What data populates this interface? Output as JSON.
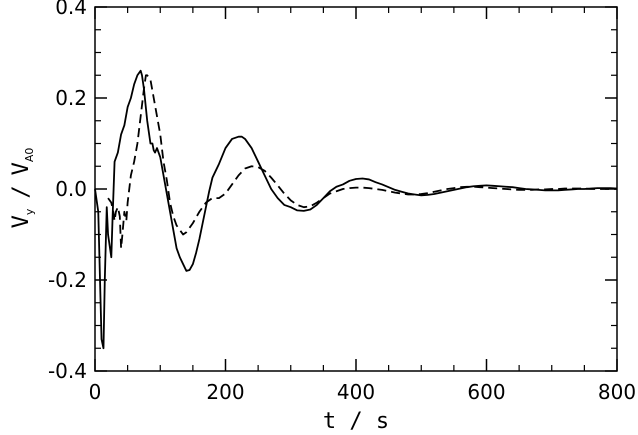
{
  "chart_data": {
    "type": "line",
    "title": "",
    "xlabel": "t / s",
    "ylabel_main": "V",
    "ylabel_sub": "y",
    "ylabel_sep": "/",
    "ylabel_main2": "V",
    "ylabel_sub2": "A0",
    "xlim": [
      0,
      800
    ],
    "ylim": [
      -0.4,
      0.4
    ],
    "x_ticks": [
      0,
      200,
      400,
      600,
      800
    ],
    "x_tick_labels": [
      "0",
      "200",
      "400",
      "600",
      "800"
    ],
    "y_ticks": [
      -0.4,
      -0.2,
      0.0,
      0.2,
      0.4
    ],
    "y_tick_labels": [
      "-0.4",
      "-0.2",
      "0.0",
      "0.2",
      "0.4"
    ],
    "grid": false,
    "series": [
      {
        "style": "solid",
        "x": [
          0,
          5,
          10,
          13,
          15,
          18,
          20,
          25,
          27,
          30,
          35,
          40,
          45,
          50,
          55,
          60,
          65,
          70,
          72,
          75,
          80,
          85,
          88,
          90,
          92,
          95,
          100,
          105,
          110,
          115,
          120,
          125,
          130,
          135,
          140,
          145,
          150,
          155,
          160,
          165,
          170,
          175,
          180,
          185,
          190,
          200,
          210,
          220,
          225,
          230,
          240,
          250,
          260,
          270,
          280,
          290,
          300,
          310,
          320,
          330,
          340,
          350,
          360,
          370,
          380,
          390,
          400,
          410,
          420,
          430,
          440,
          450,
          460,
          470,
          480,
          490,
          500,
          510,
          520,
          530,
          540,
          550,
          560,
          570,
          580,
          590,
          600,
          610,
          620,
          630,
          640,
          650,
          660,
          670,
          680,
          690,
          700,
          710,
          720,
          730,
          740,
          750,
          760,
          770,
          780,
          790,
          800
        ],
        "y": [
          0.0,
          -0.05,
          -0.33,
          -0.35,
          -0.2,
          -0.04,
          -0.1,
          -0.15,
          -0.06,
          0.06,
          0.08,
          0.12,
          0.14,
          0.18,
          0.2,
          0.23,
          0.25,
          0.26,
          0.25,
          0.22,
          0.15,
          0.1,
          0.1,
          0.085,
          0.08,
          0.09,
          0.07,
          0.03,
          -0.01,
          -0.05,
          -0.09,
          -0.13,
          -0.15,
          -0.165,
          -0.18,
          -0.178,
          -0.165,
          -0.14,
          -0.11,
          -0.075,
          -0.04,
          -0.005,
          0.025,
          0.04,
          0.055,
          0.09,
          0.11,
          0.115,
          0.115,
          0.11,
          0.09,
          0.06,
          0.03,
          0.0,
          -0.02,
          -0.035,
          -0.04,
          -0.047,
          -0.048,
          -0.045,
          -0.035,
          -0.02,
          -0.005,
          0.005,
          0.01,
          0.018,
          0.022,
          0.023,
          0.021,
          0.015,
          0.01,
          0.004,
          -0.002,
          -0.006,
          -0.01,
          -0.012,
          -0.014,
          -0.013,
          -0.011,
          -0.008,
          -0.005,
          -0.002,
          0.001,
          0.004,
          0.006,
          0.007,
          0.008,
          0.007,
          0.006,
          0.005,
          0.004,
          0.002,
          0.0,
          -0.001,
          -0.002,
          -0.003,
          -0.003,
          -0.003,
          -0.002,
          -0.001,
          0.0,
          0.0,
          0.001,
          0.002,
          0.002,
          0.002,
          0.001
        ]
      },
      {
        "style": "dashed",
        "x": [
          20,
          25,
          28,
          30,
          32,
          35,
          38,
          40,
          42,
          45,
          48,
          50,
          55,
          60,
          65,
          70,
          75,
          78,
          80,
          85,
          90,
          95,
          100,
          105,
          110,
          115,
          120,
          125,
          130,
          135,
          140,
          150,
          160,
          170,
          180,
          190,
          200,
          210,
          220,
          230,
          240,
          250,
          260,
          270,
          280,
          290,
          300,
          310,
          320,
          330,
          340,
          350,
          360,
          370,
          380,
          390,
          400,
          410,
          420,
          430,
          440,
          450,
          460,
          470,
          480,
          490,
          500,
          510,
          520,
          530,
          540,
          550,
          560,
          570,
          580,
          590,
          600,
          610,
          620,
          630,
          640,
          650,
          660,
          670,
          680,
          690,
          700,
          710,
          720,
          730,
          740,
          750,
          760,
          770,
          780,
          790,
          800
        ],
        "y": [
          -0.02,
          -0.03,
          -0.05,
          -0.07,
          -0.05,
          -0.04,
          -0.06,
          -0.13,
          -0.1,
          -0.05,
          -0.07,
          -0.03,
          0.03,
          0.06,
          0.1,
          0.16,
          0.22,
          0.25,
          0.25,
          0.24,
          0.2,
          0.16,
          0.12,
          0.06,
          0.02,
          -0.03,
          -0.06,
          -0.08,
          -0.09,
          -0.1,
          -0.095,
          -0.075,
          -0.05,
          -0.03,
          -0.02,
          -0.02,
          -0.01,
          0.01,
          0.03,
          0.045,
          0.05,
          0.048,
          0.04,
          0.025,
          0.008,
          -0.01,
          -0.025,
          -0.035,
          -0.04,
          -0.038,
          -0.03,
          -0.02,
          -0.01,
          -0.005,
          0.0,
          0.002,
          0.003,
          0.003,
          0.002,
          0.0,
          -0.002,
          -0.005,
          -0.008,
          -0.01,
          -0.012,
          -0.012,
          -0.011,
          -0.009,
          -0.006,
          -0.003,
          0.0,
          0.002,
          0.004,
          0.005,
          0.005,
          0.004,
          0.003,
          0.002,
          0.001,
          0.0,
          -0.001,
          -0.002,
          -0.002,
          -0.002,
          -0.001,
          -0.001,
          0.0,
          0.0,
          0.001,
          0.001,
          0.001,
          0.001,
          0.0,
          0.0,
          0.0,
          0.0,
          0.0
        ]
      }
    ]
  }
}
